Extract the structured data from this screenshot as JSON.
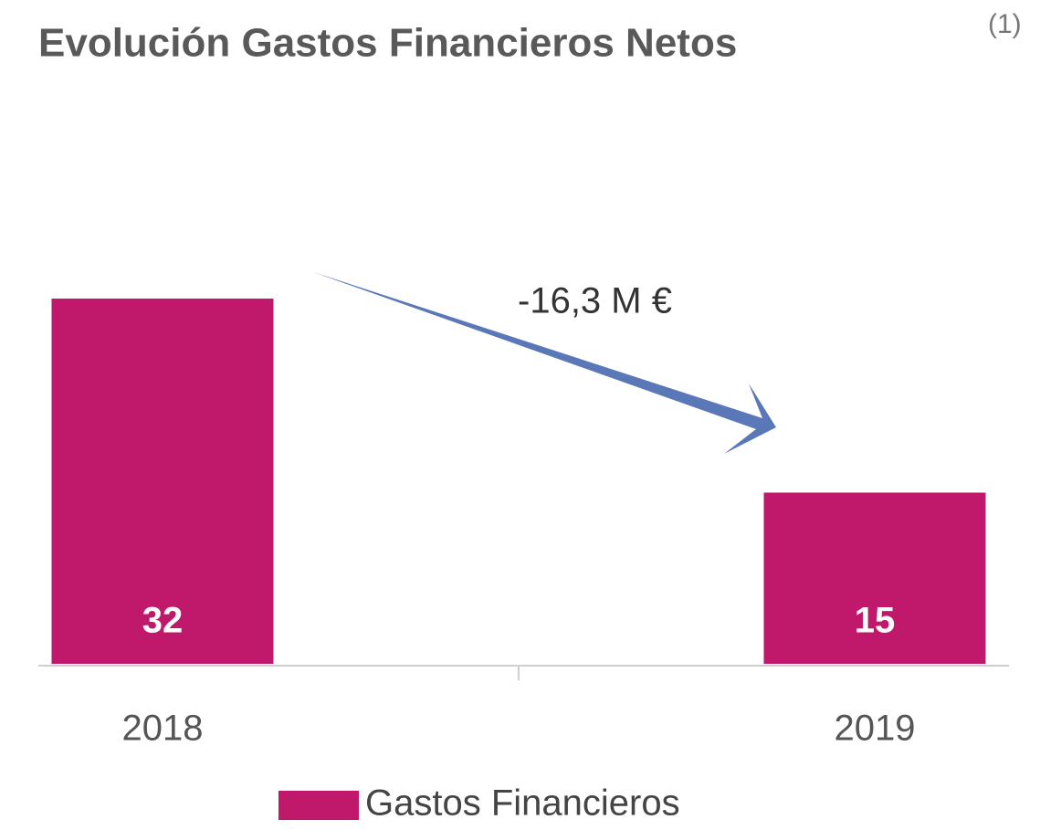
{
  "chart_data": {
    "type": "bar",
    "title": "Evolución Gastos Financieros Netos",
    "title_note": "(1)",
    "annotation": "-16,3 M €",
    "categories": [
      "2018",
      "2019"
    ],
    "series": [
      {
        "name": "Gastos Financieros",
        "color": "#c0186b",
        "values": [
          32,
          15
        ]
      }
    ]
  }
}
